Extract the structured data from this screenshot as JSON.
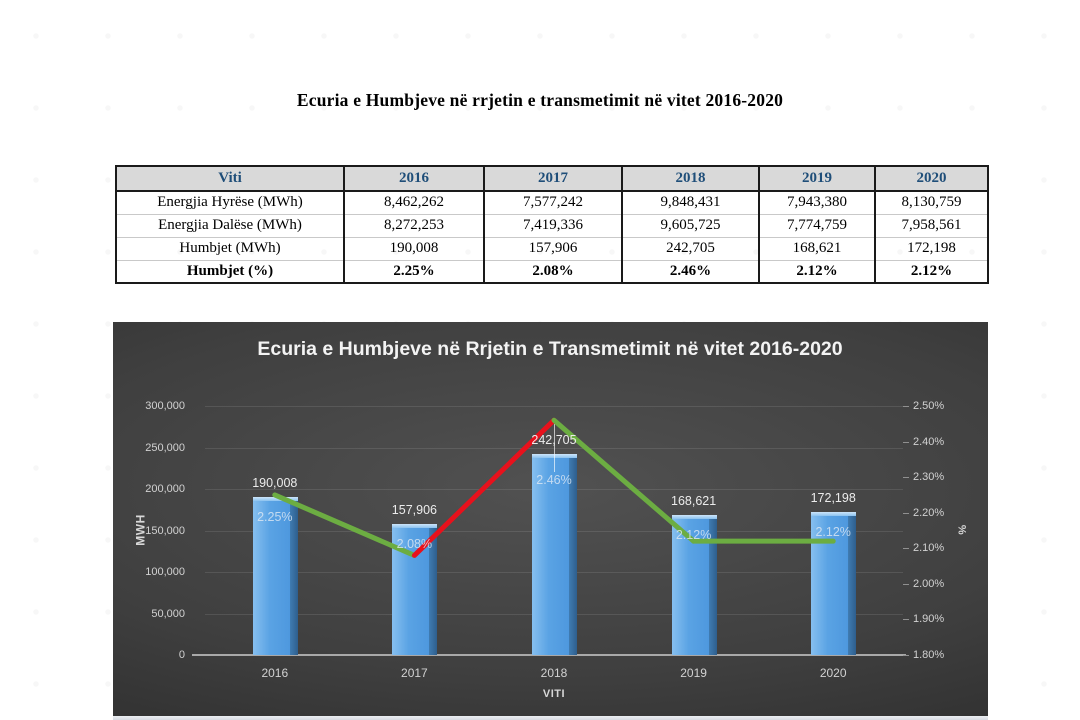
{
  "document": {
    "title": "Ecuria e Humbjeve në rrjetin e transmetimit në vitet 2016-2020"
  },
  "table": {
    "header": [
      "Viti",
      "2016",
      "2017",
      "2018",
      "2019",
      "2020"
    ],
    "rows": [
      {
        "label": "Energjia Hyrëse (MWh)",
        "values": [
          "8,462,262",
          "7,577,242",
          "9,848,431",
          "7,943,380",
          "8,130,759"
        ],
        "bold": false
      },
      {
        "label": "Energjia Dalëse (MWh)",
        "values": [
          "8,272,253",
          "7,419,336",
          "9,605,725",
          "7,774,759",
          "7,958,561"
        ],
        "bold": false
      },
      {
        "label": "Humbjet (MWh)",
        "values": [
          "190,008",
          "157,906",
          "242,705",
          "168,621",
          "172,198"
        ],
        "bold": false
      },
      {
        "label": "Humbjet (%)",
        "values": [
          "2.25%",
          "2.08%",
          "2.46%",
          "2.12%",
          "2.12%"
        ],
        "bold": true
      }
    ],
    "header_text_color": "#1F4E79",
    "header_bg": "#D9D9D9"
  },
  "chart_data": {
    "type": "bar",
    "subtype": "bar-line-combo",
    "title": "Ecuria e Humbjeve në Rrjetin e Transmetimit në vitet 2016-2020",
    "categories": [
      "2016",
      "2017",
      "2018",
      "2019",
      "2020"
    ],
    "series": [
      {
        "name": "Humbjet (MWh)",
        "type": "bar",
        "axis": "left",
        "values": [
          190008,
          157906,
          242705,
          168621,
          172198
        ],
        "labels": [
          "190,008",
          "157,906",
          "242,705",
          "168,621",
          "172,198"
        ],
        "color": "#5B9BD5"
      },
      {
        "name": "Humbjet (%)",
        "type": "line",
        "axis": "right",
        "values": [
          2.25,
          2.08,
          2.46,
          2.12,
          2.12
        ],
        "labels": [
          "2.25%",
          "2.08%",
          "2.46%",
          "2.12%",
          "2.12%"
        ],
        "segment_colors": [
          "#6CAD42",
          "#E8111C",
          "#6CAD42",
          "#6CAD42"
        ]
      }
    ],
    "xlabel": "VITI",
    "ylabel_left": "MWH",
    "ylabel_right": "%",
    "left_axis": {
      "min": 0,
      "max": 300000,
      "ticks": [
        "300,000",
        "250,000",
        "200,000",
        "150,000",
        "100,000",
        "50,000",
        "0"
      ]
    },
    "right_axis": {
      "min": 1.8,
      "max": 2.5,
      "ticks": [
        "2.50%",
        "2.40%",
        "2.30%",
        "2.20%",
        "2.10%",
        "2.00%",
        "1.90%",
        "1.80%"
      ]
    },
    "grid": true,
    "legend": "none",
    "background": "dark-gradient"
  }
}
